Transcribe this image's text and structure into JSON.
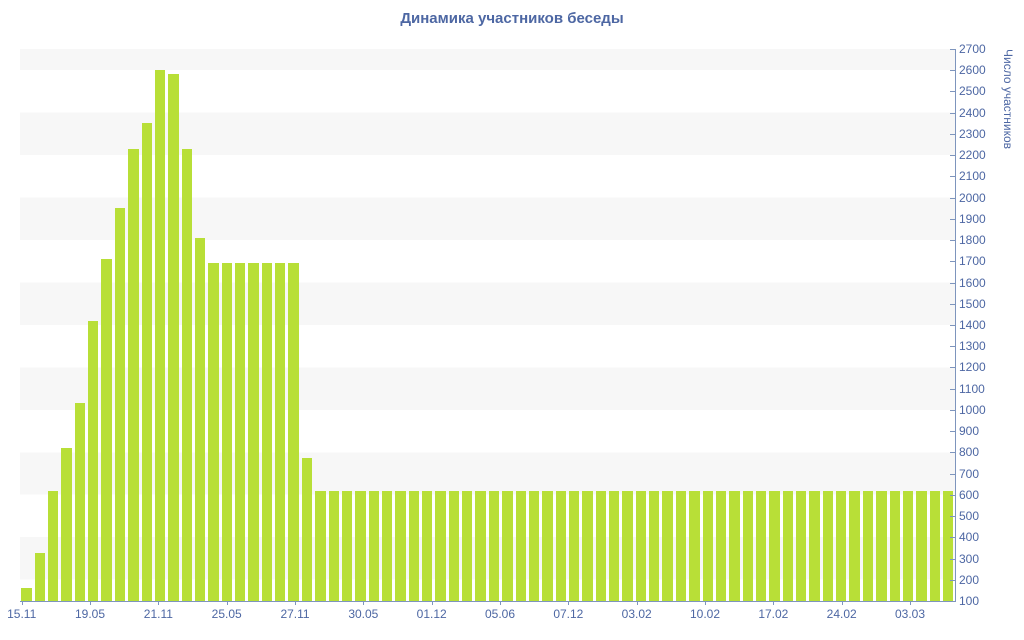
{
  "title": "Динамика участников беседы",
  "colors": {
    "bar": "#b8df37",
    "text": "#4d67a3",
    "axis_line": "#7e95bd",
    "stripe_gray": "#f7f7f7",
    "stripe_white": "#ffffff"
  },
  "y_axis": {
    "label": "Число участников",
    "min": 100,
    "max": 2700,
    "step": 100,
    "tick_labels": [
      "2700",
      "2600",
      "2500",
      "2400",
      "2300",
      "2200",
      "2100",
      "2000",
      "1900",
      "1800",
      "1700",
      "1600",
      "1500",
      "1400",
      "1300",
      "1200",
      "1100",
      "1000",
      "900",
      "800",
      "700",
      "600",
      "500",
      "400",
      "300",
      "200",
      "100"
    ]
  },
  "x_axis": {
    "tick_labels": [
      "15.11",
      "19.05",
      "21.11",
      "25.05",
      "27.11",
      "30.05",
      "01.12",
      "05.06",
      "07.12",
      "03.02",
      "10.02",
      "17.02",
      "24.02",
      "03.03"
    ],
    "label_every_n_bars": 5
  },
  "chart_data": {
    "type": "bar",
    "title": "Динамика участников беседы",
    "xlabel": "",
    "ylabel": "Число участников",
    "ylim": [
      100,
      2700
    ],
    "grid": "horizontal-stripes",
    "legend": "none",
    "bar_count": 70,
    "x_tick_labels": [
      "15.11",
      "19.05",
      "21.11",
      "25.05",
      "27.11",
      "30.05",
      "01.12",
      "05.06",
      "07.12",
      "03.02",
      "10.02",
      "17.02",
      "24.02",
      "03.03"
    ],
    "values": [
      160,
      325,
      620,
      820,
      1035,
      1420,
      1710,
      1950,
      2230,
      2350,
      2600,
      2580,
      2230,
      1810,
      1690,
      1690,
      1690,
      1690,
      1690,
      1690,
      1690,
      775,
      620,
      620,
      620,
      620,
      620,
      620,
      620,
      620,
      620,
      620,
      620,
      620,
      620,
      620,
      620,
      620,
      620,
      620,
      620,
      620,
      620,
      620,
      620,
      620,
      620,
      620,
      620,
      620,
      620,
      620,
      620,
      620,
      620,
      620,
      620,
      620,
      620,
      620,
      620,
      620,
      620,
      620,
      620,
      620,
      620,
      620,
      620,
      620
    ]
  }
}
